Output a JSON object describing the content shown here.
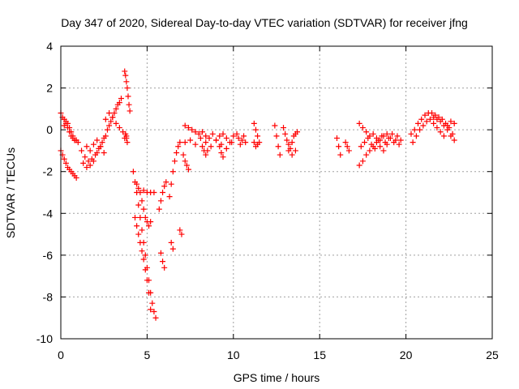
{
  "chart_data": {
    "type": "scatter",
    "title": "Day 347 of 2020, Sidereal Day-to-day VTEC variation (SDTVAR) for receiver jfng",
    "xlabel": "GPS time / hours",
    "ylabel": "SDTVAR / TECUs",
    "xlim": [
      0,
      25
    ],
    "ylim": [
      -10,
      4
    ],
    "xticks": [
      0,
      5,
      10,
      15,
      20,
      25
    ],
    "yticks": [
      -10,
      -8,
      -6,
      -4,
      -2,
      0,
      2,
      4
    ],
    "xtick_labels": [
      "0",
      "5",
      "10",
      "15",
      "20",
      "25"
    ],
    "ytick_labels": [
      "-10",
      "-8",
      "-6",
      "-4",
      "-2",
      "0",
      "2",
      "4"
    ],
    "grid": true,
    "marker": "+",
    "color": "#ff0000",
    "segments": [
      {
        "x": [
          0.0,
          0.1,
          0.2,
          0.3,
          0.4,
          0.5,
          0.6,
          0.7,
          0.8,
          0.9,
          1.0
        ],
        "y": [
          0.8,
          0.6,
          0.5,
          0.3,
          0.1,
          -0.1,
          -0.3,
          -0.4,
          -0.5,
          -0.5,
          -0.6
        ]
      },
      {
        "x": [
          0.0,
          0.1,
          0.2,
          0.3,
          0.4,
          0.5,
          0.6,
          0.7,
          0.8,
          0.9
        ],
        "y": [
          -1.0,
          -1.2,
          -1.4,
          -1.6,
          -1.8,
          -1.9,
          -2.0,
          -2.1,
          -2.2,
          -2.3
        ]
      },
      {
        "x": [
          0.2,
          0.3,
          0.4,
          0.5,
          0.6,
          0.7,
          0.8
        ],
        "y": [
          0.2,
          0.4,
          0.3,
          0.1,
          -0.1,
          -0.3,
          -0.5
        ]
      },
      {
        "x": [
          1.2,
          1.4,
          1.6,
          1.8,
          2.0,
          2.2,
          2.4,
          2.6,
          2.8,
          3.0,
          3.2,
          3.4
        ],
        "y": [
          -1.0,
          -1.3,
          -1.5,
          -1.4,
          -1.2,
          -0.9,
          -0.6,
          -0.3,
          0.2,
          0.6,
          1.0,
          1.3
        ]
      },
      {
        "x": [
          1.3,
          1.5,
          1.7,
          1.9,
          2.1,
          2.3,
          2.5,
          2.7,
          2.9,
          3.1,
          3.3,
          3.5
        ],
        "y": [
          -1.6,
          -1.8,
          -1.7,
          -1.5,
          -1.1,
          -0.8,
          -0.4,
          0.0,
          0.4,
          0.8,
          1.2,
          1.5
        ]
      },
      {
        "x": [
          1.5,
          1.7,
          1.9,
          2.1,
          2.3,
          2.5
        ],
        "y": [
          -0.8,
          -1.0,
          -0.7,
          -0.5,
          -0.8,
          -1.1
        ]
      },
      {
        "x": [
          2.6,
          2.8,
          3.0,
          3.2,
          3.4,
          3.6,
          3.8
        ],
        "y": [
          0.5,
          0.8,
          0.6,
          0.3,
          0.1,
          -0.1,
          -0.3
        ]
      },
      {
        "x": [
          3.7,
          3.75,
          3.8,
          3.85,
          3.9,
          3.95,
          4.0
        ],
        "y": [
          2.8,
          2.6,
          2.3,
          2.0,
          1.6,
          1.2,
          0.9
        ]
      },
      {
        "x": [
          3.7,
          3.75,
          3.8,
          3.85
        ],
        "y": [
          -0.4,
          -0.2,
          -0.4,
          -0.6
        ]
      },
      {
        "x": [
          4.2,
          4.3,
          4.4,
          4.5,
          4.6,
          4.7,
          4.8,
          4.9,
          5.0,
          5.1,
          5.2,
          5.3,
          5.4,
          5.5
        ],
        "y": [
          -2.0,
          -2.5,
          -3.0,
          -3.6,
          -4.2,
          -4.8,
          -5.4,
          -6.0,
          -6.6,
          -7.2,
          -7.8,
          -8.3,
          -8.7,
          -9.0
        ]
      },
      {
        "x": [
          4.3,
          4.4,
          4.5,
          4.6,
          4.7,
          4.8,
          4.9,
          5.0,
          5.1,
          5.2
        ],
        "y": [
          -4.2,
          -4.6,
          -5.0,
          -5.4,
          -5.8,
          -6.2,
          -6.7,
          -7.2,
          -7.8,
          -8.6
        ]
      },
      {
        "x": [
          4.4,
          4.5,
          4.6,
          4.7,
          4.8,
          4.9,
          5.0,
          5.1,
          5.2
        ],
        "y": [
          -2.6,
          -2.8,
          -3.0,
          -3.4,
          -3.8,
          -4.2,
          -4.4,
          -4.6,
          -4.4
        ]
      },
      {
        "x": [
          4.8,
          5.0,
          5.2,
          5.4
        ],
        "y": [
          -2.9,
          -3.0,
          -3.0,
          -3.0
        ]
      },
      {
        "x": [
          5.7,
          5.8,
          5.9,
          6.0,
          6.1
        ],
        "y": [
          -3.8,
          -3.4,
          -3.0,
          -2.7,
          -2.5
        ]
      },
      {
        "x": [
          5.8,
          5.9,
          6.0
        ],
        "y": [
          -5.9,
          -6.3,
          -6.6
        ]
      },
      {
        "x": [
          6.3,
          6.4,
          6.5,
          6.6,
          6.7,
          6.8,
          6.9
        ],
        "y": [
          -3.2,
          -2.6,
          -2.0,
          -1.5,
          -1.1,
          -0.8,
          -0.6
        ]
      },
      {
        "x": [
          6.4,
          6.5
        ],
        "y": [
          -5.4,
          -5.7
        ]
      },
      {
        "x": [
          6.9,
          7.0
        ],
        "y": [
          -4.8,
          -5.0
        ]
      },
      {
        "x": [
          7.1,
          7.2,
          7.3,
          7.4
        ],
        "y": [
          -1.2,
          -1.5,
          -1.7,
          -1.9
        ]
      },
      {
        "x": [
          7.2,
          7.4,
          7.6,
          7.8,
          8.0,
          8.2,
          8.4,
          8.6,
          8.8,
          9.0,
          9.2,
          9.4,
          9.6,
          9.8,
          10.0
        ],
        "y": [
          0.2,
          0.1,
          0.0,
          -0.1,
          -0.2,
          -0.1,
          -0.3,
          -0.4,
          -0.2,
          -0.5,
          -0.3,
          -0.2,
          -0.4,
          -0.6,
          -0.3
        ]
      },
      {
        "x": [
          7.2,
          7.5,
          7.8,
          8.1,
          8.4,
          8.7,
          9.0,
          9.3,
          9.6,
          9.9
        ],
        "y": [
          -0.6,
          -0.5,
          -0.7,
          -0.4,
          -0.6,
          -0.8,
          -0.5,
          -0.7,
          -0.9,
          -0.6
        ]
      },
      {
        "x": [
          8.2,
          8.3,
          8.4,
          8.5
        ],
        "y": [
          -0.8,
          -1.0,
          -1.2,
          -1.0
        ]
      },
      {
        "x": [
          9.2,
          9.3,
          9.4
        ],
        "y": [
          -0.8,
          -1.1,
          -1.3
        ]
      },
      {
        "x": [
          10.2,
          10.3,
          10.4,
          10.5,
          10.6,
          10.7
        ],
        "y": [
          -0.2,
          -0.4,
          -0.7,
          -0.5,
          -0.3,
          -0.6
        ]
      },
      {
        "x": [
          11.2,
          11.3,
          11.4,
          11.5
        ],
        "y": [
          0.3,
          0.0,
          -0.3,
          -0.6
        ]
      },
      {
        "x": [
          11.2,
          11.3,
          11.4
        ],
        "y": [
          -0.6,
          -0.8,
          -0.7
        ]
      },
      {
        "x": [
          12.4,
          12.5,
          12.6,
          12.7
        ],
        "y": [
          0.2,
          -0.3,
          -0.8,
          -1.2
        ]
      },
      {
        "x": [
          12.9,
          13.0,
          13.1,
          13.2,
          13.3,
          13.4,
          13.5,
          13.6,
          13.7
        ],
        "y": [
          0.1,
          -0.2,
          -0.5,
          -0.7,
          -0.9,
          -0.6,
          -0.3,
          -0.2,
          -0.1
        ]
      },
      {
        "x": [
          13.2,
          13.4,
          13.6
        ],
        "y": [
          -1.0,
          -1.2,
          -1.0
        ]
      },
      {
        "x": [
          16.0,
          16.1,
          16.2
        ],
        "y": [
          -0.4,
          -0.8,
          -1.2
        ]
      },
      {
        "x": [
          16.5,
          16.6,
          16.7
        ],
        "y": [
          -0.6,
          -0.8,
          -1.0
        ]
      },
      {
        "x": [
          17.3,
          17.5,
          17.7,
          17.9,
          18.1,
          18.3,
          18.5,
          18.7,
          18.9,
          19.1,
          19.3,
          19.5,
          19.7
        ],
        "y": [
          0.3,
          0.1,
          -0.1,
          -0.3,
          -0.2,
          -0.4,
          -0.5,
          -0.3,
          -0.2,
          -0.4,
          -0.6,
          -0.3,
          -0.5
        ]
      },
      {
        "x": [
          17.3,
          17.5,
          17.7,
          17.9,
          18.1,
          18.3,
          18.5,
          18.7,
          18.9
        ],
        "y": [
          -1.7,
          -1.5,
          -1.2,
          -1.0,
          -0.8,
          -0.6,
          -0.8,
          -1.0,
          -0.7
        ]
      },
      {
        "x": [
          17.4,
          17.6,
          17.8,
          18.0,
          18.2,
          18.4,
          18.6,
          18.8,
          19.0,
          19.2,
          19.4,
          19.6
        ],
        "y": [
          -0.8,
          -0.6,
          -0.4,
          -0.7,
          -0.9,
          -0.5,
          -0.3,
          -0.6,
          -0.4,
          -0.2,
          -0.5,
          -0.7
        ]
      },
      {
        "x": [
          20.3,
          20.5,
          20.7,
          20.9,
          21.1,
          21.3,
          21.5,
          21.7,
          21.9,
          22.1,
          22.3,
          22.5,
          22.7
        ],
        "y": [
          -0.2,
          0.0,
          0.3,
          0.5,
          0.7,
          0.8,
          0.8,
          0.7,
          0.6,
          0.5,
          0.3,
          0.1,
          -0.2
        ]
      },
      {
        "x": [
          20.4,
          20.6,
          20.8,
          21.0,
          21.2,
          21.4,
          21.6,
          21.8,
          22.0,
          22.2,
          22.4,
          22.6,
          22.8
        ],
        "y": [
          -0.6,
          -0.3,
          0.0,
          0.2,
          0.4,
          0.5,
          0.6,
          0.5,
          0.4,
          0.2,
          0.0,
          -0.3,
          -0.5
        ]
      },
      {
        "x": [
          21.6,
          21.8,
          22.0,
          22.2,
          22.4,
          22.6,
          22.8
        ],
        "y": [
          0.3,
          0.1,
          -0.1,
          -0.3,
          0.2,
          0.4,
          0.3
        ]
      }
    ]
  }
}
